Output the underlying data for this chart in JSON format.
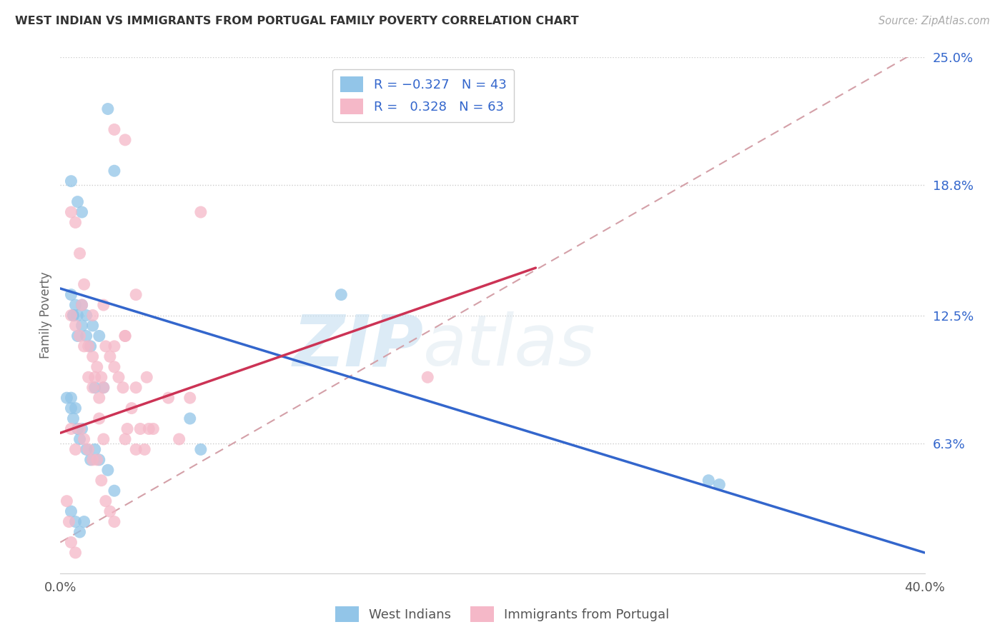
{
  "title": "WEST INDIAN VS IMMIGRANTS FROM PORTUGAL FAMILY POVERTY CORRELATION CHART",
  "source": "Source: ZipAtlas.com",
  "ylabel": "Family Poverty",
  "xlim": [
    0.0,
    0.4
  ],
  "ylim": [
    0.0,
    0.25
  ],
  "watermark_zip": "ZIP",
  "watermark_atlas": "atlas",
  "color_blue": "#92c5e8",
  "color_pink": "#f5b8c8",
  "color_blue_line": "#3366cc",
  "color_pink_line": "#cc3355",
  "color_dashed": "#d4a0a8",
  "blue_scatter_x": [
    0.022,
    0.025,
    0.005,
    0.008,
    0.01,
    0.005,
    0.007,
    0.006,
    0.008,
    0.01,
    0.012,
    0.015,
    0.018,
    0.02,
    0.005,
    0.007,
    0.006,
    0.008,
    0.009,
    0.01,
    0.012,
    0.014,
    0.016,
    0.018,
    0.022,
    0.025,
    0.06,
    0.065,
    0.13,
    0.005,
    0.007,
    0.009,
    0.011,
    0.006,
    0.008,
    0.01,
    0.012,
    0.014,
    0.016,
    0.003,
    0.005,
    0.3,
    0.305
  ],
  "blue_scatter_y": [
    0.225,
    0.195,
    0.19,
    0.18,
    0.175,
    0.135,
    0.13,
    0.125,
    0.115,
    0.13,
    0.125,
    0.12,
    0.115,
    0.09,
    0.085,
    0.08,
    0.075,
    0.07,
    0.065,
    0.07,
    0.06,
    0.055,
    0.06,
    0.055,
    0.05,
    0.04,
    0.075,
    0.06,
    0.135,
    0.03,
    0.025,
    0.02,
    0.025,
    0.125,
    0.125,
    0.12,
    0.115,
    0.11,
    0.09,
    0.085,
    0.08,
    0.045,
    0.043
  ],
  "pink_scatter_x": [
    0.005,
    0.007,
    0.009,
    0.011,
    0.013,
    0.015,
    0.016,
    0.018,
    0.02,
    0.025,
    0.03,
    0.035,
    0.04,
    0.05,
    0.06,
    0.065,
    0.005,
    0.007,
    0.009,
    0.011,
    0.013,
    0.015,
    0.017,
    0.019,
    0.021,
    0.023,
    0.025,
    0.027,
    0.029,
    0.031,
    0.033,
    0.035,
    0.037,
    0.039,
    0.041,
    0.043,
    0.01,
    0.015,
    0.02,
    0.025,
    0.03,
    0.035,
    0.055,
    0.03,
    0.005,
    0.007,
    0.009,
    0.011,
    0.013,
    0.015,
    0.017,
    0.019,
    0.021,
    0.023,
    0.025,
    0.03,
    0.003,
    0.004,
    0.005,
    0.007,
    0.17,
    0.02,
    0.018
  ],
  "pink_scatter_y": [
    0.175,
    0.17,
    0.155,
    0.14,
    0.095,
    0.09,
    0.095,
    0.085,
    0.09,
    0.215,
    0.21,
    0.09,
    0.095,
    0.085,
    0.085,
    0.175,
    0.125,
    0.12,
    0.115,
    0.11,
    0.11,
    0.105,
    0.1,
    0.095,
    0.11,
    0.105,
    0.1,
    0.095,
    0.09,
    0.07,
    0.08,
    0.06,
    0.07,
    0.06,
    0.07,
    0.07,
    0.13,
    0.125,
    0.13,
    0.11,
    0.115,
    0.135,
    0.065,
    0.115,
    0.07,
    0.06,
    0.07,
    0.065,
    0.06,
    0.055,
    0.055,
    0.045,
    0.035,
    0.03,
    0.025,
    0.065,
    0.035,
    0.025,
    0.015,
    0.01,
    0.095,
    0.065,
    0.075
  ],
  "blue_line_x": [
    0.0,
    0.4
  ],
  "blue_line_y": [
    0.138,
    0.01
  ],
  "pink_line_x": [
    0.0,
    0.22
  ],
  "pink_line_y": [
    0.068,
    0.148
  ],
  "dashed_line_x": [
    0.0,
    0.4
  ],
  "dashed_line_y": [
    0.015,
    0.255
  ],
  "grid_color": "#cccccc",
  "background_color": "#ffffff",
  "ytick_vals": [
    0.063,
    0.125,
    0.188,
    0.25
  ],
  "ytick_labels": [
    "6.3%",
    "12.5%",
    "18.8%",
    "25.0%"
  ],
  "xtick_vals": [
    0.0,
    0.1,
    0.2,
    0.3,
    0.4
  ],
  "xtick_labels": [
    "0.0%",
    "",
    "",
    "",
    "40.0%"
  ]
}
